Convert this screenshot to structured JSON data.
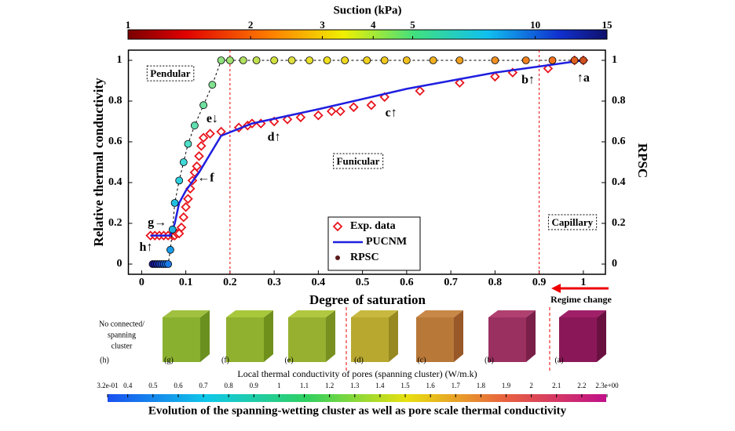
{
  "chart_data": [
    {
      "type": "line",
      "x_label": "Degree of saturation",
      "y_label": "Relative thermal conductivity",
      "y2_label": "RPSC",
      "xlim": [
        -0.03,
        1.05
      ],
      "xticks": [
        0,
        0.1,
        0.2,
        0.3,
        0.4,
        0.5,
        0.6,
        0.7,
        0.8,
        0.9,
        1
      ],
      "ylim": [
        -0.05,
        1.05
      ],
      "yticks": [
        0,
        0.2,
        0.4,
        0.6,
        0.8,
        1
      ],
      "y2lim": [
        -0.05,
        1.05
      ],
      "y2ticks": [
        0,
        0.2,
        0.4,
        0.6,
        0.8,
        1
      ],
      "vlines": [
        0.2,
        0.9
      ],
      "legend": "lower center",
      "series": [
        {
          "name": "Exp. data",
          "color": "#e8141c",
          "marker": "diamond",
          "x": [
            0.02,
            0.03,
            0.04,
            0.05,
            0.06,
            0.07,
            0.075,
            0.08,
            0.085,
            0.09,
            0.095,
            0.1,
            0.105,
            0.11,
            0.115,
            0.12,
            0.125,
            0.13,
            0.135,
            0.14,
            0.155,
            0.18,
            0.22,
            0.24,
            0.25,
            0.27,
            0.3,
            0.33,
            0.36,
            0.4,
            0.43,
            0.45,
            0.48,
            0.52,
            0.55,
            0.63,
            0.72,
            0.8,
            0.84,
            0.92,
            0.98,
            1.0
          ],
          "values": [
            0.14,
            0.14,
            0.14,
            0.14,
            0.14,
            0.14,
            0.14,
            0.15,
            0.15,
            0.18,
            0.23,
            0.28,
            0.32,
            0.37,
            0.41,
            0.45,
            0.48,
            0.53,
            0.58,
            0.62,
            0.64,
            0.65,
            0.67,
            0.68,
            0.69,
            0.69,
            0.7,
            0.71,
            0.72,
            0.73,
            0.75,
            0.75,
            0.77,
            0.78,
            0.82,
            0.85,
            0.89,
            0.92,
            0.94,
            0.96,
            1.0,
            1.0
          ]
        },
        {
          "name": "PUCNM",
          "color": "#1f1fe0",
          "marker": "line",
          "x": [
            0.02,
            0.065,
            0.075,
            0.085,
            0.1,
            0.13,
            0.18,
            0.25,
            0.4,
            0.6,
            0.8,
            1.0
          ],
          "values": [
            0.14,
            0.14,
            0.2,
            0.3,
            0.36,
            0.45,
            0.63,
            0.69,
            0.76,
            0.86,
            0.94,
            1.0
          ]
        },
        {
          "name": "RPSC",
          "color": "#5a1a1a",
          "marker": "circle",
          "axis": "y2",
          "x": [
            0.025,
            0.03,
            0.035,
            0.04,
            0.045,
            0.05,
            0.055,
            0.06,
            0.065,
            0.07,
            0.075,
            0.085,
            0.095,
            0.105,
            0.12,
            0.14,
            0.16,
            0.18,
            0.2,
            0.23,
            0.26,
            0.3,
            0.34,
            0.38,
            0.42,
            0.46,
            0.51,
            0.55,
            0.6,
            0.66,
            0.72,
            0.8,
            0.87,
            0.93,
            0.98,
            1.0
          ],
          "values": [
            0,
            0,
            0,
            0,
            0,
            0,
            0,
            0,
            0.07,
            0.17,
            0.3,
            0.41,
            0.5,
            0.59,
            0.68,
            0.78,
            0.88,
            1,
            1,
            1,
            1,
            1,
            1,
            1,
            1,
            1,
            1,
            1,
            1,
            1,
            1,
            1,
            1,
            1,
            1,
            1
          ],
          "colors": [
            "#1a1a9a",
            "#1a1a9a",
            "#1a2aa8",
            "#1a3ab8",
            "#1a4ac8",
            "#1a5ad8",
            "#1a6ae0",
            "#1a7ae8",
            "#1a9ae8",
            "#20b0e0",
            "#20c0e0",
            "#30d0e0",
            "#40d8d8",
            "#50e0c8",
            "#60e0b0",
            "#70e0a0",
            "#80e090",
            "#90e080",
            "#a0e070",
            "#b0e060",
            "#c0e050",
            "#d0e040",
            "#e0e040",
            "#e8e030",
            "#f0e020",
            "#f0d820",
            "#f0d020",
            "#f0c820",
            "#f0c020",
            "#f0b020",
            "#f0a020",
            "#f09020",
            "#f08020",
            "#f07020",
            "#e06020",
            "#d05020"
          ]
        }
      ],
      "annotations": [
        "Pendular",
        "Funicular",
        "Capillary",
        "↑a",
        "b↑",
        "c↑",
        "d↑",
        "e↓",
        "←f",
        "g→",
        "h↑"
      ],
      "regime_note": "Regime change"
    },
    {
      "type": "colorbar",
      "title": "Suction (kPa)",
      "log": true,
      "xlim": [
        1,
        15
      ],
      "xticks": [
        1,
        2,
        3,
        4,
        5,
        10,
        15
      ]
    },
    {
      "type": "colorbar",
      "title": "Local thermal conductivity of pores (spanning cluster) (W/m.k)",
      "xlim": [
        0.32,
        2.3
      ],
      "xticks": [
        {
          "value": 0.32,
          "label": "3.2e-01"
        },
        0.4,
        0.5,
        0.6,
        0.7,
        0.8,
        0.9,
        1,
        1.1,
        1.2,
        1.3,
        1.4,
        1.5,
        1.6,
        1.7,
        1.8,
        1.9,
        2,
        2.1,
        2.2,
        {
          "value": 2.3,
          "label": "2.3e+00"
        }
      ]
    }
  ],
  "panels": {
    "no_cluster": [
      "No connected/",
      "spanning",
      "cluster"
    ],
    "labels": [
      "(h)",
      "(g)",
      "(f)",
      "(e)",
      "(d)",
      "(c)",
      "(b)",
      "(a)"
    ]
  },
  "caption": "Evolution of the spanning-wetting cluster as well as pore scale thermal conductivity"
}
